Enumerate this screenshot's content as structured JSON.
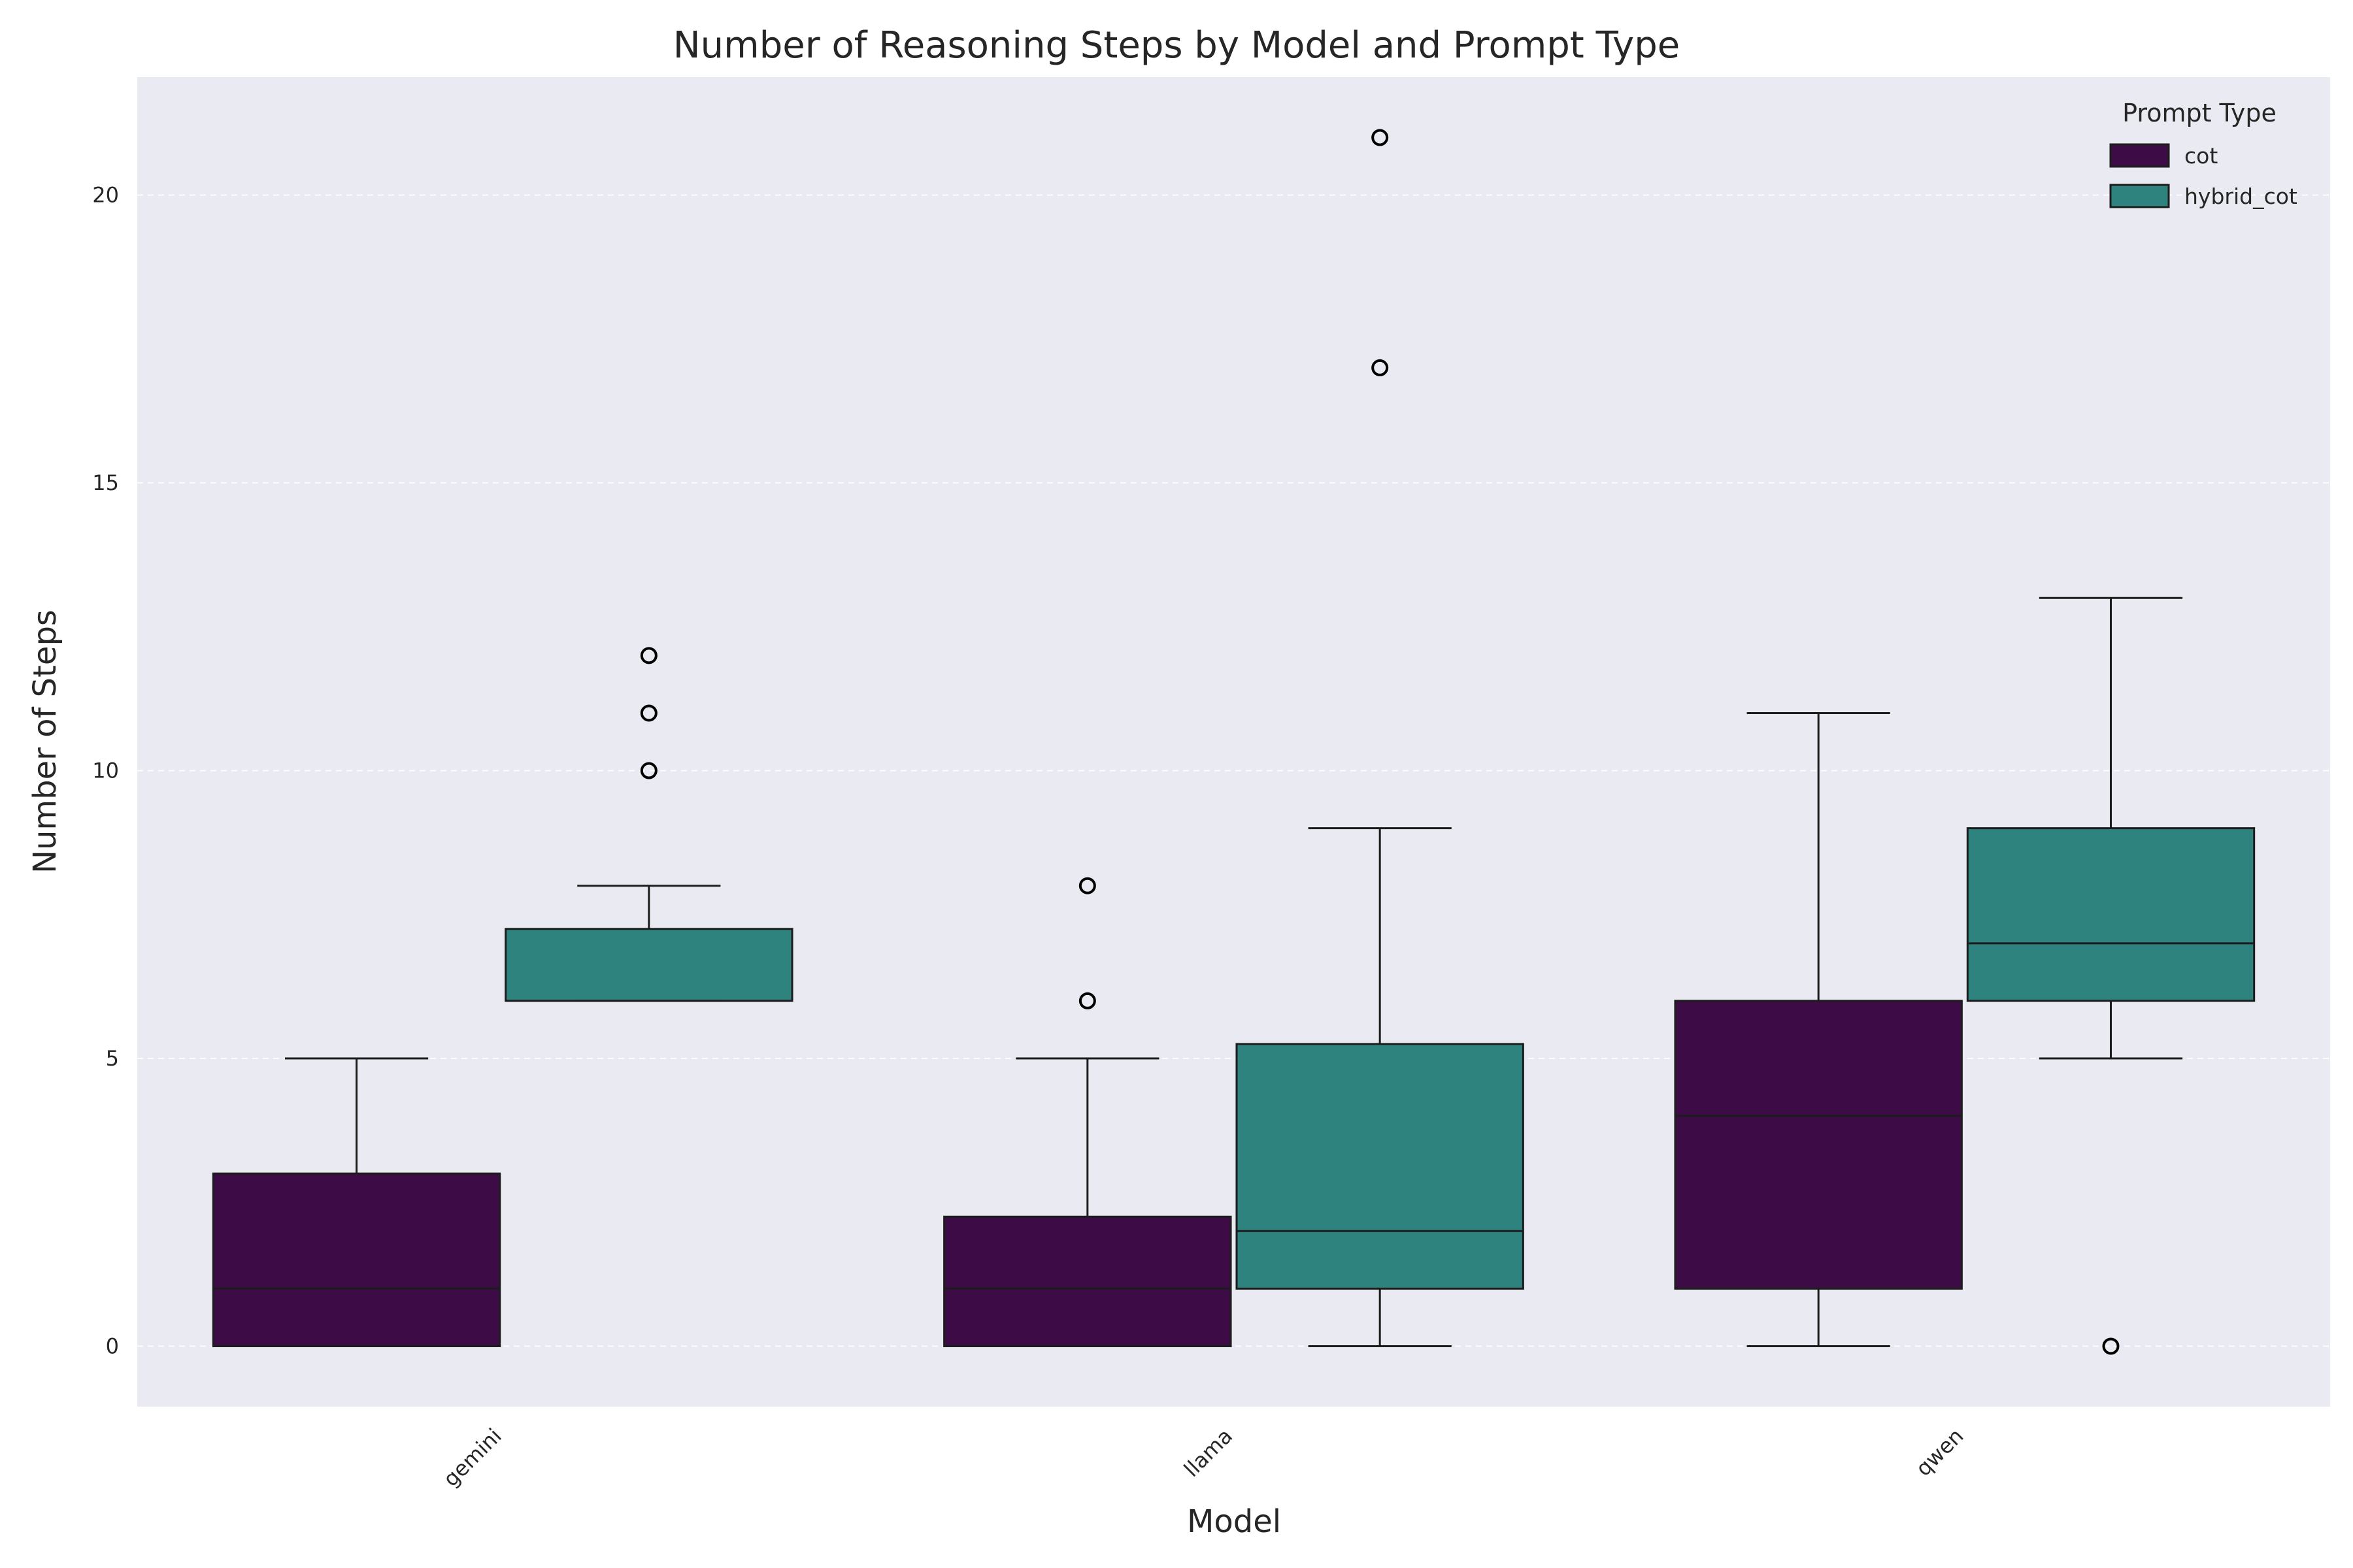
{
  "chart_data": {
    "type": "box",
    "title": "Number of Reasoning Steps by Model and Prompt Type",
    "xlabel": "Model",
    "ylabel": "Number of Steps",
    "categories": [
      "gemini",
      "llama",
      "qwen"
    ],
    "ylim": [
      -1.05,
      22.05
    ],
    "yticks": [
      0,
      5,
      10,
      15,
      20
    ],
    "grid": true,
    "legend": {
      "title": "Prompt Type",
      "position": "top-right"
    },
    "series": [
      {
        "name": "cot",
        "color": "#3d0c47",
        "boxes": [
          {
            "category": "gemini",
            "whisker_low": 0,
            "q1": 0,
            "median": 1,
            "q3": 3,
            "whisker_high": 5,
            "outliers": []
          },
          {
            "category": "llama",
            "whisker_low": 0,
            "q1": 0,
            "median": 1,
            "q3": 2.25,
            "whisker_high": 5,
            "outliers": [
              6,
              8
            ]
          },
          {
            "category": "qwen",
            "whisker_low": 0,
            "q1": 1,
            "median": 4,
            "q3": 6,
            "whisker_high": 11,
            "outliers": []
          }
        ]
      },
      {
        "name": "hybrid_cot",
        "color": "#2e837e",
        "boxes": [
          {
            "category": "gemini",
            "whisker_low": 6,
            "q1": 6,
            "median": 6,
            "q3": 7.25,
            "whisker_high": 8,
            "outliers": [
              10,
              11,
              12
            ]
          },
          {
            "category": "llama",
            "whisker_low": 0,
            "q1": 1,
            "median": 2,
            "q3": 5.25,
            "whisker_high": 9,
            "outliers": [
              17,
              21
            ]
          },
          {
            "category": "qwen",
            "whisker_low": 5,
            "q1": 6,
            "median": 7,
            "q3": 9,
            "whisker_high": 13,
            "outliers": [
              0
            ]
          }
        ]
      }
    ]
  }
}
